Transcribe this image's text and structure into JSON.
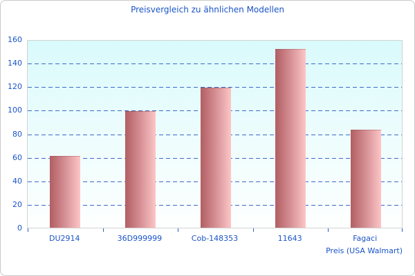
{
  "title": "Preisvergleich zu ähnlichen Modellen",
  "colors": {
    "label_blue": "#1953c8",
    "gridline_blue": "#3a68c8",
    "bar_gradient_left": "#b15e62",
    "bar_gradient_right": "#fdc6c6",
    "plot_bg_top": "#d9fafc",
    "plot_bg_bottom": "#fdfffe",
    "plot_border": "#d2d2d2",
    "canvas_border": "#c9c9c9"
  },
  "chart_data": {
    "type": "bar",
    "title": "Preisvergleich zu ähnlichen Modellen",
    "categories": [
      "DU2914",
      "36D999999",
      "Cob-148353",
      "11643",
      "Fagaci"
    ],
    "values": [
      61,
      99,
      119,
      152,
      83
    ],
    "xlabel": "Preis (USA Walmart)",
    "ylabel": "",
    "ylim": [
      0,
      160
    ],
    "ytick_step": 20,
    "yticks": [
      0,
      20,
      40,
      60,
      80,
      100,
      120,
      140,
      160
    ],
    "grid": "horizontal-dashed",
    "legend": "none"
  }
}
